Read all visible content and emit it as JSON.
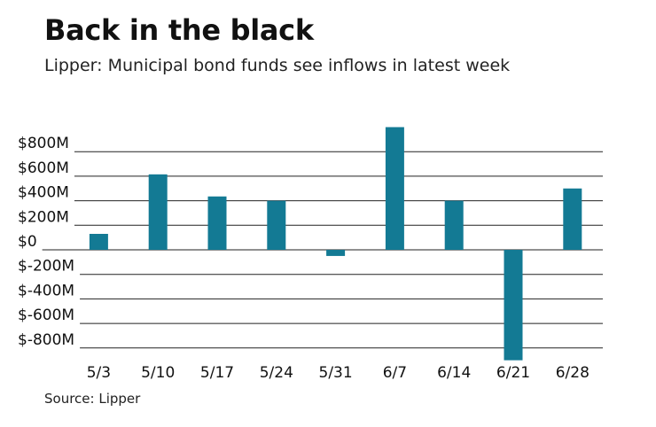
{
  "title": "Back in the black",
  "subtitle": "Lipper: Municipal bond funds see inflows in latest week",
  "source": "Source: Lipper",
  "chart_data": {
    "type": "bar",
    "categories": [
      "5/3",
      "5/10",
      "5/17",
      "5/24",
      "5/31",
      "6/7",
      "6/14",
      "6/21",
      "6/28"
    ],
    "values": [
      130,
      615,
      435,
      400,
      -50,
      1000,
      400,
      -900,
      500
    ],
    "ylim": [
      -900,
      1000
    ],
    "yticks": [
      800,
      600,
      400,
      200,
      0,
      -200,
      -400,
      -600,
      -800
    ],
    "ytick_labels": [
      "$800M",
      "$600M",
      "$400M",
      "$200M",
      "$0",
      "$-200M",
      "$-400M",
      "$-600M",
      "$-800M"
    ],
    "grid": true,
    "bar_color": "#137a94",
    "grid_color": "#222222"
  }
}
